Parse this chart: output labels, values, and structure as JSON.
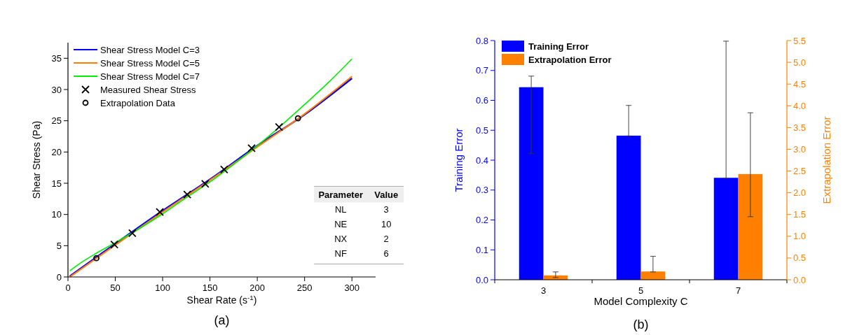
{
  "chart_data": [
    {
      "type": "line",
      "xlabel": "Shear Rate (s$^{-1}$)",
      "ylabel": "Shear Stress (Pa)",
      "xlim": [
        0,
        325
      ],
      "xticks": [
        0,
        50,
        100,
        150,
        200,
        250,
        300
      ],
      "ylim": [
        0,
        37.5
      ],
      "yticks": [
        0,
        5,
        10,
        15,
        20,
        25,
        30,
        35
      ],
      "legend": "top left",
      "series": [
        {
          "name": "Shear Stress Model C=3",
          "color": "#0000ff",
          "marker": "none",
          "x": [
            2,
            50,
            100,
            150,
            200,
            250,
            300
          ],
          "values": [
            0.1,
            5.3,
            10.6,
            15.6,
            21,
            26,
            31.8
          ]
        },
        {
          "name": "Shear Stress Model C=5",
          "color": "#ff7f00",
          "marker": "none",
          "x": [
            2,
            50,
            100,
            150,
            200,
            250,
            300
          ],
          "values": [
            0,
            5.1,
            10.4,
            15.5,
            20.8,
            26.1,
            32.1
          ]
        },
        {
          "name": "Shear Stress Model C=7",
          "color": "#00ee00",
          "marker": "none",
          "x": [
            2,
            10,
            30,
            50,
            75,
            100,
            125,
            150,
            175,
            200,
            225,
            250,
            275,
            300
          ],
          "values": [
            1,
            1.9,
            3.8,
            5.5,
            7.7,
            10.1,
            12.7,
            15.2,
            18,
            21,
            24.2,
            27.6,
            31.1,
            34.9
          ]
        },
        {
          "name": "Measured Shear Stress",
          "type": "scatter",
          "color": "#000000",
          "marker": "cross",
          "x": [
            49,
            68,
            97,
            126,
            145,
            165,
            194,
            223
          ],
          "values": [
            5.2,
            7,
            10.4,
            13.2,
            14.9,
            17.2,
            20.6,
            24
          ]
        },
        {
          "name": "Extrapolation Data",
          "type": "scatter",
          "color": "#000000",
          "marker": "circle",
          "x": [
            30,
            243
          ],
          "values": [
            3,
            25.4
          ]
        }
      ],
      "annotations": [
        "(a)",
        "Parameter",
        "Value",
        "NL",
        "3",
        "NE",
        "10",
        "NX",
        "2",
        "NF",
        "6"
      ]
    },
    {
      "type": "bar",
      "categories": [
        "3",
        "5",
        "7"
      ],
      "xlabel": "Model Complexity C",
      "ylabel": "Training Error",
      "y2label": "Extrapolation Error",
      "legend": "top left",
      "ylim": [
        0,
        0.8
      ],
      "yticks": [
        {
          "value": 0,
          "label": "0.0"
        },
        0.1,
        0.2,
        0.3,
        0.4,
        0.5,
        0.6,
        0.7,
        0.8
      ],
      "y2lim": [
        0,
        5.5
      ],
      "y2ticks": [
        {
          "value": 0,
          "label": "0.0"
        },
        0.5,
        {
          "value": 1,
          "label": "1.0"
        },
        1.5,
        {
          "value": 2,
          "label": "2.0"
        },
        2.5,
        {
          "value": 3,
          "label": "3.0"
        },
        3.5,
        {
          "value": 4,
          "label": "4.0"
        },
        4.5,
        {
          "value": 5,
          "label": "5.0"
        },
        5.5
      ],
      "series": [
        {
          "name": "Training Error",
          "color": "#0000ff",
          "values": [
            0.644,
            0.482,
            0.341
          ],
          "errors": [
            [
              0.422,
              0.681
            ],
            [
              0.481,
              0.583
            ],
            [
              0.339,
              0.798
            ]
          ]
        },
        {
          "name": "Extrapolation Error",
          "color": "#ff8000",
          "axis": "y2",
          "values": [
            0.1,
            0.19,
            2.43
          ],
          "errors": [
            [
              0.05,
              0.18
            ],
            [
              0.18,
              0.54
            ],
            [
              1.45,
              3.84
            ]
          ]
        }
      ],
      "annotations": [
        "(b)"
      ]
    }
  ]
}
